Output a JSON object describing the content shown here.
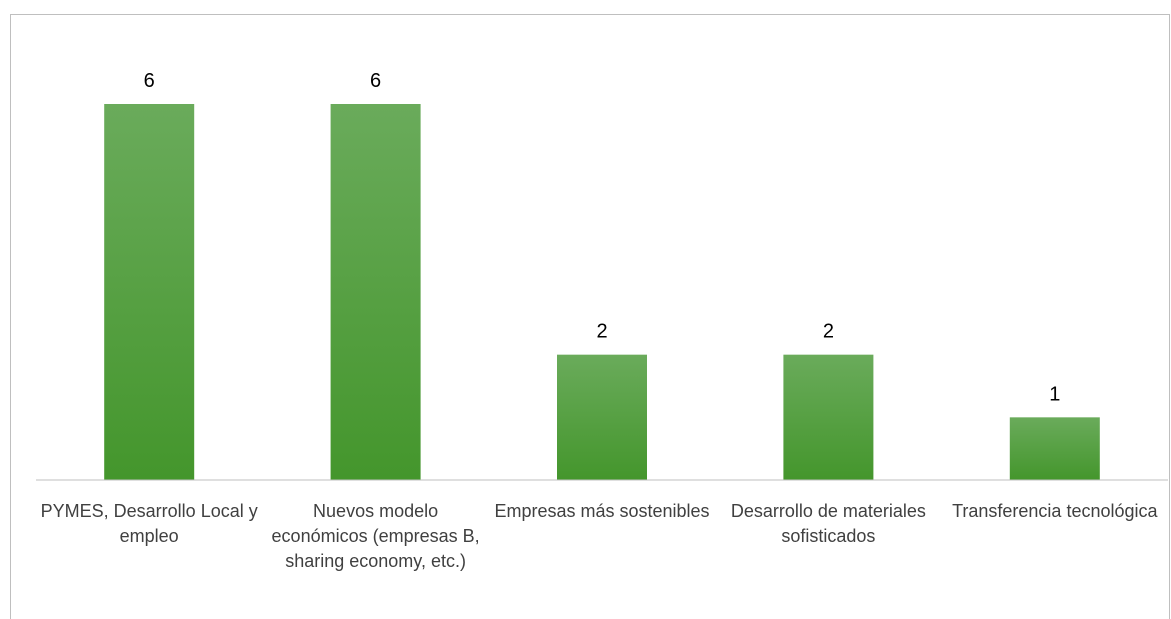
{
  "chart_data": {
    "type": "bar",
    "categories": [
      "PYMES, Desarrollo Local y empleo",
      "Nuevos modelo económicos (empresas B, sharing economy, etc.)",
      "Empresas más sostenibles",
      "Desarrollo de materiales sofisticados",
      "Transferencia tecnológica"
    ],
    "values": [
      6,
      6,
      2,
      2,
      1
    ],
    "title": "",
    "xlabel": "",
    "ylabel": "",
    "ylim": [
      0,
      6
    ],
    "grid": false,
    "data_labels": true,
    "colors": {
      "bar_top": "#6aab5b",
      "bar_bottom": "#44962c",
      "axis": "#bfbfbf"
    }
  }
}
